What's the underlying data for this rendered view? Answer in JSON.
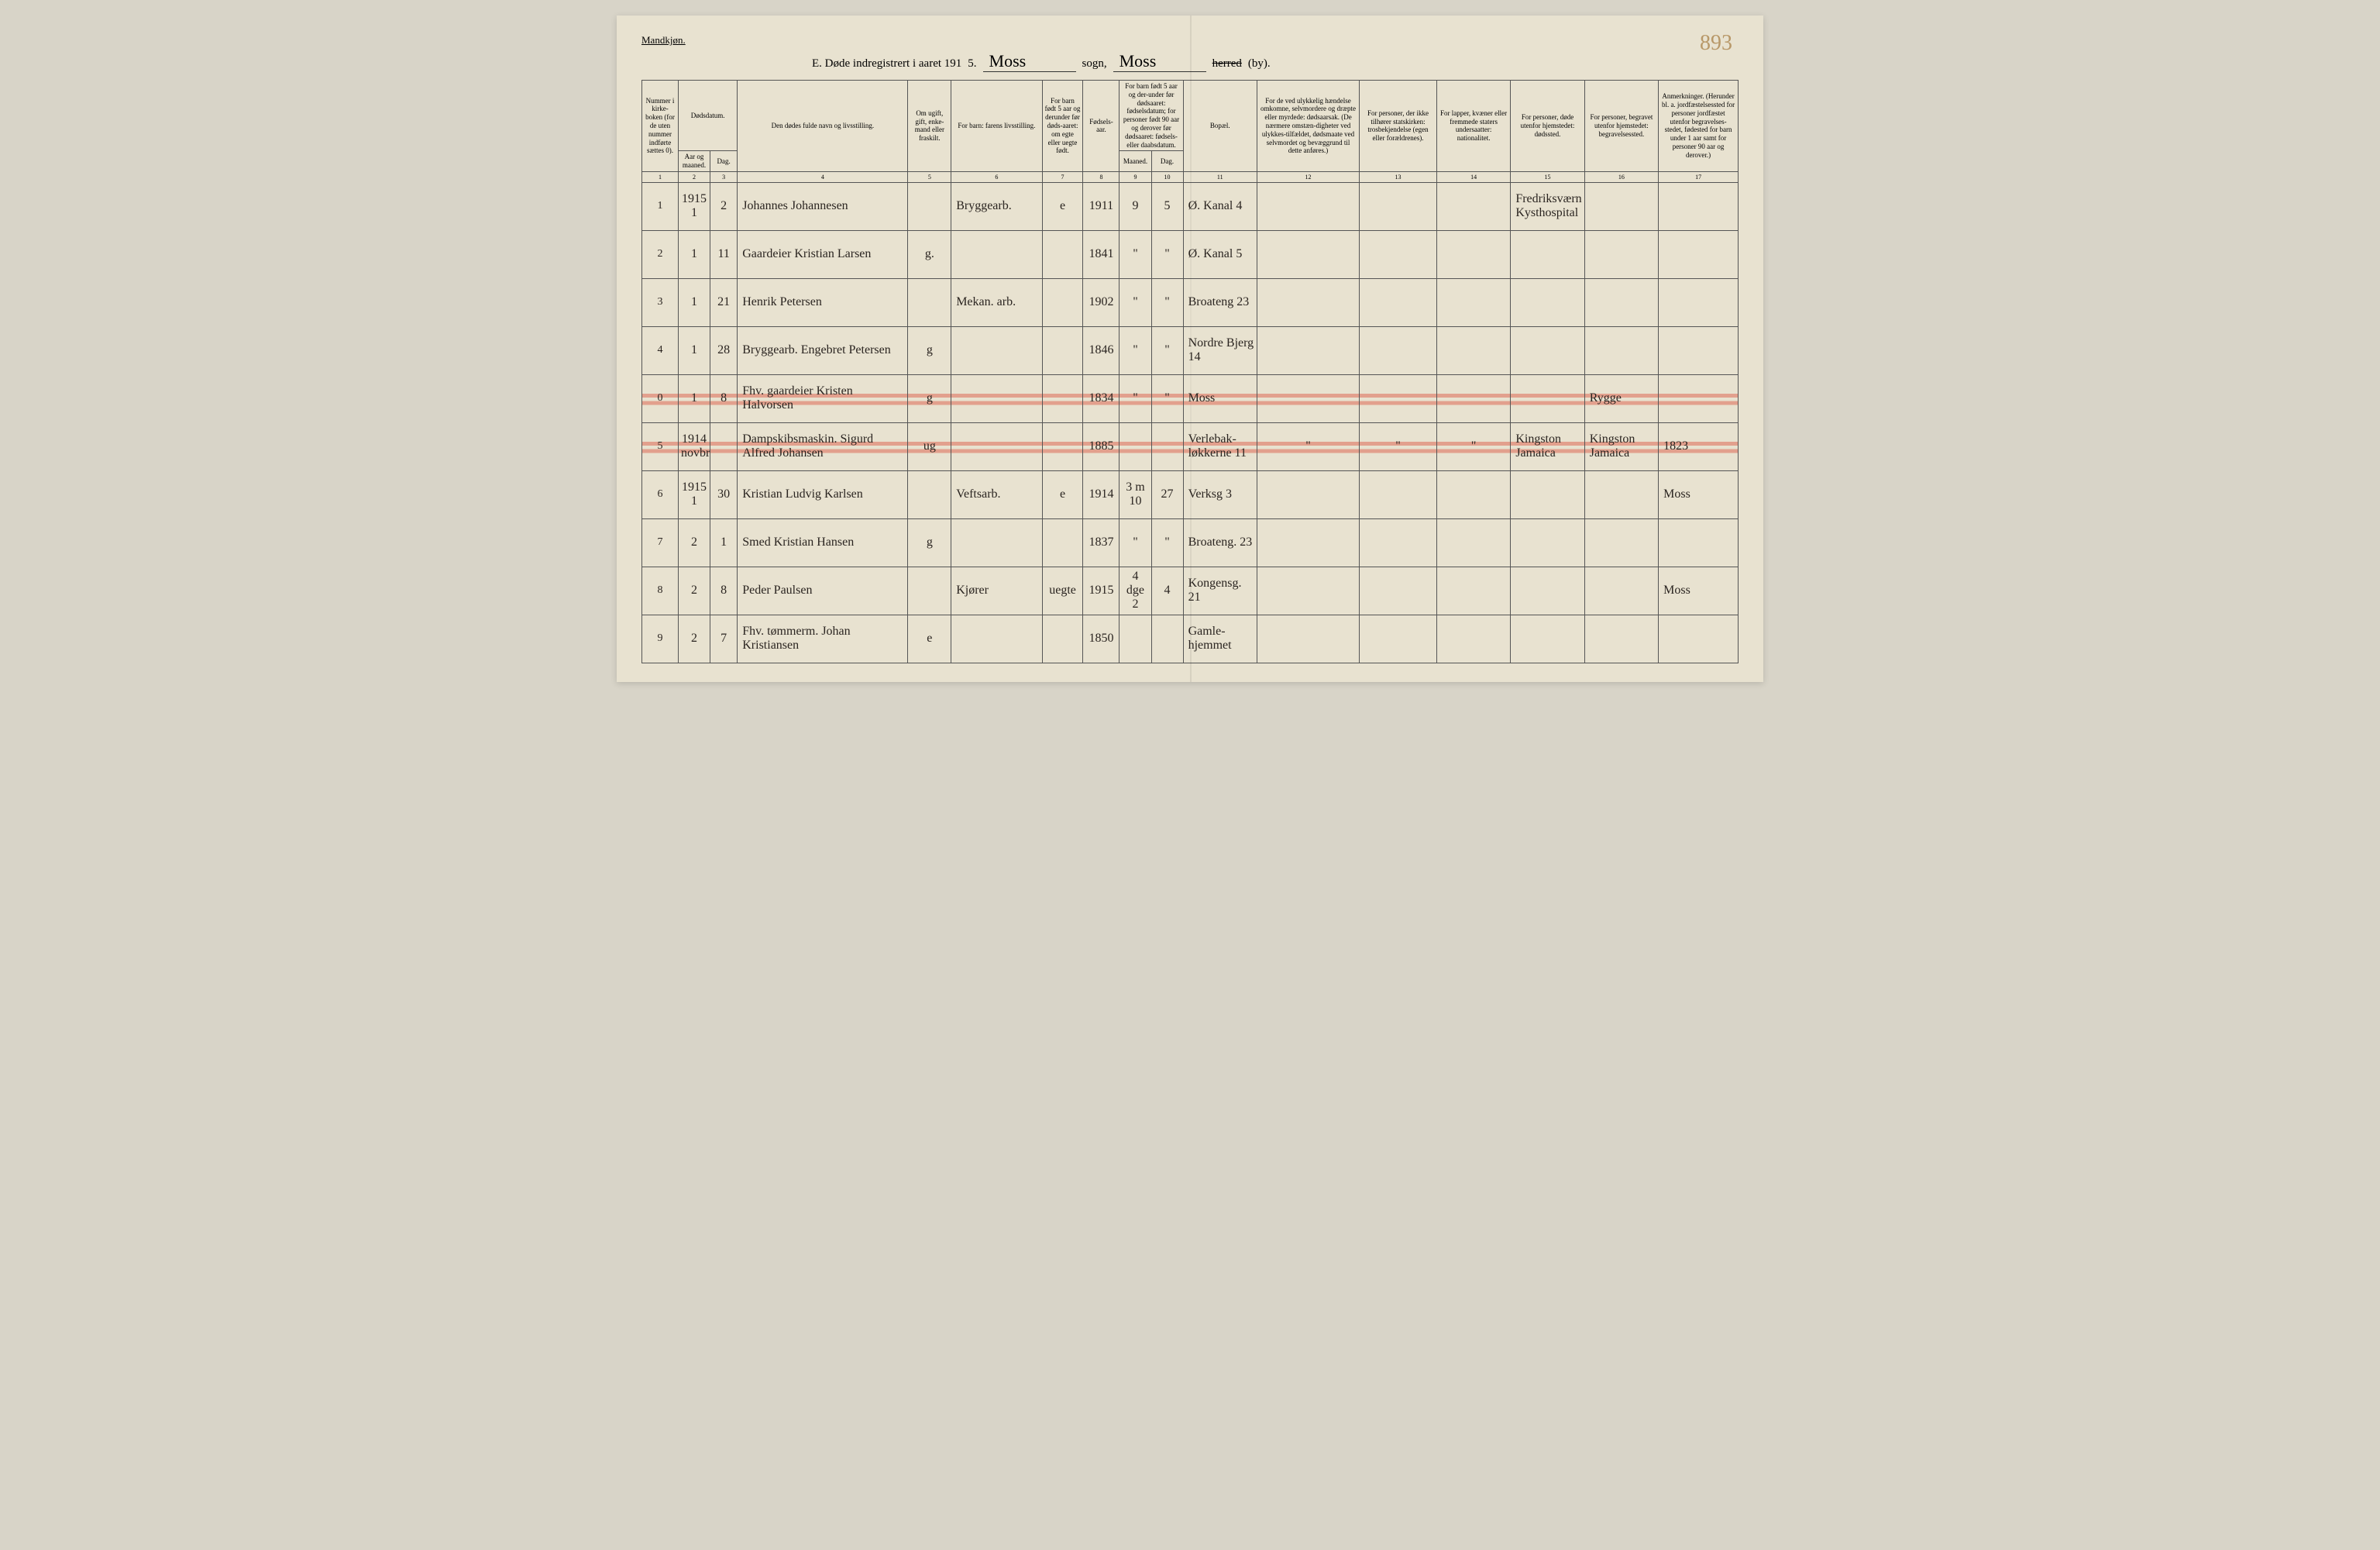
{
  "document": {
    "top_label": "Mandkjøn.",
    "title_prefix": "E.  Døde indregistrert i aaret 191",
    "year_suffix": "5.",
    "sogn_value": "Moss",
    "sogn_label": "sogn,",
    "herred_value": "Moss",
    "herred_label_strike": "herred",
    "herred_label_suffix": "(by).",
    "page_number": "893"
  },
  "headers": {
    "col1": "Nummer i kirke-boken (for de uten nummer indførte sættes 0).",
    "col2_3_top": "Dødsdatum.",
    "col2": "Aar og maaned.",
    "col3": "Dag.",
    "col4": "Den dødes fulde navn og livsstilling.",
    "col5": "Om ugift, gift, enke-mand eller fraskilt.",
    "col6": "For barn: farens livsstilling.",
    "col7": "For barn født 5 aar og derunder før døds-aaret: om egte eller uegte født.",
    "col8": "Fødsels-aar.",
    "col9_10_top": "For barn født 5 aar og der-under før dødsaaret: fødselsdatum; for personer født 90 aar og derover før dødsaaret: fødsels- eller daabsdatum.",
    "col9": "Maaned.",
    "col10": "Dag.",
    "col11": "Bopæl.",
    "col12": "For de ved ulykkelig hændelse omkomne, selvmordere og dræpte eller myrdede: dødsaarsak. (De nærmere omstæn-digheter ved ulykkes-tilfældet, dødsmaate ved selvmordet og bevæggrund til dette anføres.)",
    "col13": "For personer, der ikke tilhører statskirken: trosbekjendelse (egen eller forældrenes).",
    "col14": "For lapper, kvæner eller fremmede staters undersaatter: nationalitet.",
    "col15": "For personer, døde utenfor hjemstedet: dødssted.",
    "col16": "For personer, begravet utenfor hjemstedet: begravelsessted.",
    "col17": "Anmerkninger. (Herunder bl. a. jordfæstelsessted for personer jordfæstet utenfor begravelses-stedet, fødested for barn under 1 aar samt for personer 90 aar og derover.)"
  },
  "colnums": [
    "1",
    "2",
    "3",
    "4",
    "5",
    "6",
    "7",
    "8",
    "9",
    "10",
    "11",
    "12",
    "13",
    "14",
    "15",
    "16",
    "17"
  ],
  "rows": [
    {
      "num": "1",
      "year": "1915\n1",
      "day": "2",
      "name": "Johannes Johannesen",
      "marital": "",
      "father": "Bryggearb.",
      "legit": "e",
      "birth": "1911",
      "m": "9",
      "d": "5",
      "residence": "Ø. Kanal 4",
      "col12": "",
      "col13": "",
      "col14": "",
      "col15": "Fredriksværn Kysthospital",
      "col16": "",
      "col17": "",
      "strike": false
    },
    {
      "num": "2",
      "year": "1",
      "day": "11",
      "name": "Gaardeier Kristian Larsen",
      "marital": "g.",
      "father": "",
      "legit": "",
      "birth": "1841",
      "m": "\"",
      "d": "\"",
      "residence": "Ø. Kanal 5",
      "col12": "",
      "col13": "",
      "col14": "",
      "col15": "",
      "col16": "",
      "col17": "",
      "strike": false
    },
    {
      "num": "3",
      "year": "1",
      "day": "21",
      "name": "Henrik Petersen",
      "marital": "",
      "father": "Mekan. arb.",
      "legit": "",
      "birth": "1902",
      "m": "\"",
      "d": "\"",
      "residence": "Broateng 23",
      "col12": "",
      "col13": "",
      "col14": "",
      "col15": "",
      "col16": "",
      "col17": "",
      "strike": false
    },
    {
      "num": "4",
      "year": "1",
      "day": "28",
      "name": "Bryggearb. Engebret Petersen",
      "marital": "g",
      "father": "",
      "legit": "",
      "birth": "1846",
      "m": "\"",
      "d": "\"",
      "residence": "Nordre Bjerg 14",
      "col12": "",
      "col13": "",
      "col14": "",
      "col15": "",
      "col16": "",
      "col17": "",
      "strike": false
    },
    {
      "num": "0",
      "year": "1",
      "day": "8",
      "name": "Fhv. gaardeier Kristen Halvorsen",
      "marital": "g",
      "father": "",
      "legit": "",
      "birth": "1834",
      "m": "\"",
      "d": "\"",
      "residence": "Moss",
      "col12": "",
      "col13": "",
      "col14": "",
      "col15": "",
      "col16": "Rygge",
      "col17": "",
      "strike": true
    },
    {
      "num": "5",
      "year": "1914\nnovbr",
      "day": "",
      "name": "Dampskibsmaskin. Sigurd Alfred Johansen",
      "marital": "ug",
      "father": "",
      "legit": "",
      "birth": "1885",
      "m": "",
      "d": "",
      "residence": "Verlebak-løkkerne 11",
      "col12": "\"",
      "col13": "\"",
      "col14": "\"",
      "col15": "Kingston Jamaica",
      "col16": "Kingston Jamaica",
      "col17": "1823",
      "strike": true
    },
    {
      "num": "6",
      "year": "1915\n1",
      "day": "30",
      "name": "Kristian Ludvig Karlsen",
      "marital": "",
      "father": "Veftsarb.",
      "legit": "e",
      "birth": "1914",
      "m": "3 m\n10",
      "d": "27",
      "residence": "Verksg 3",
      "col12": "",
      "col13": "",
      "col14": "",
      "col15": "",
      "col16": "",
      "col17": "Moss",
      "strike": false
    },
    {
      "num": "7",
      "year": "2",
      "day": "1",
      "name": "Smed Kristian Hansen",
      "marital": "g",
      "father": "",
      "legit": "",
      "birth": "1837",
      "m": "\"",
      "d": "\"",
      "residence": "Broateng. 23",
      "col12": "",
      "col13": "",
      "col14": "",
      "col15": "",
      "col16": "",
      "col17": "",
      "strike": false
    },
    {
      "num": "8",
      "year": "2",
      "day": "8",
      "name": "Peder Paulsen",
      "marital": "",
      "father": "Kjører",
      "legit": "uegte",
      "birth": "1915",
      "m": "4 dge\n2",
      "d": "4",
      "residence": "Kongensg. 21",
      "col12": "",
      "col13": "",
      "col14": "",
      "col15": "",
      "col16": "",
      "col17": "Moss",
      "strike": false
    },
    {
      "num": "9",
      "year": "2",
      "day": "7",
      "name": "Fhv. tømmerm. Johan Kristiansen",
      "marital": "e",
      "father": "",
      "legit": "",
      "birth": "1850",
      "m": "",
      "d": "",
      "residence": "Gamle-hjemmet",
      "col12": "",
      "col13": "",
      "col14": "",
      "col15": "",
      "col16": "",
      "col17": "",
      "strike": false
    }
  ]
}
